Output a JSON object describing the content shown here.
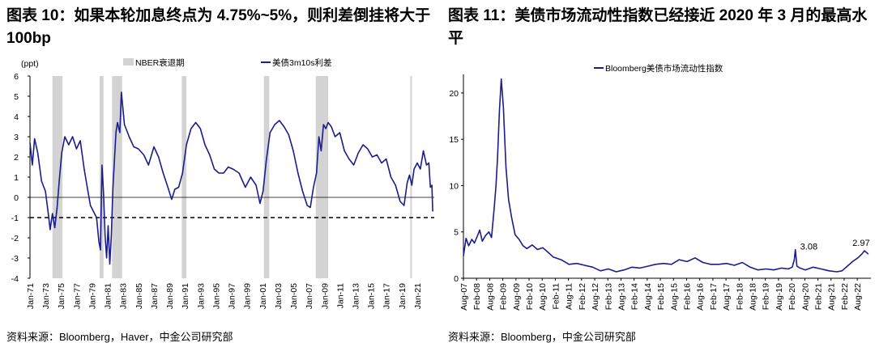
{
  "left_panel": {
    "title": "图表 10：如果本轮加息终点为 4.75%~5%，则利差倒挂将大于 100bp",
    "source": "资料来源：Bloomberg，Haver，中金公司研究部"
  },
  "right_panel": {
    "title": "图表 11：美债市场流动性指数已经接近 2020 年 3 月的最高水平",
    "source": "资料来源：Bloomberg，中金公司研究部"
  },
  "chart_data": [
    {
      "type": "line",
      "unit_label": "(ppt)",
      "ylim": [
        -4,
        6
      ],
      "y_ticks": [
        6,
        5,
        4,
        3,
        2,
        1,
        0,
        -1,
        -2,
        -3,
        -4
      ],
      "negative_tick_color": "#e00000",
      "xlim": [
        1971.0,
        2023.2
      ],
      "x_tick_labels": [
        "Jan-71",
        "Jan-73",
        "Jan-75",
        "Jan-77",
        "Jan-79",
        "Jan-81",
        "Jan-83",
        "Jan-85",
        "Jan-87",
        "Jan-89",
        "Jan-91",
        "Jan-93",
        "Jan-95",
        "Jan-97",
        "Jan-99",
        "Jan-01",
        "Jan-03",
        "Jan-05",
        "Jan-07",
        "Jan-09",
        "Jan-11",
        "Jan-13",
        "Jan-15",
        "Jan-17",
        "Jan-19",
        "Jan-21"
      ],
      "x_tick_values": [
        1971,
        1973,
        1975,
        1977,
        1979,
        1981,
        1983,
        1985,
        1987,
        1989,
        1991,
        1993,
        1995,
        1997,
        1999,
        2001,
        2003,
        2005,
        2007,
        2009,
        2011,
        2013,
        2015,
        2017,
        2019,
        2021
      ],
      "legend": [
        {
          "name": "NBER衰退期",
          "color": "#d3d3d3",
          "kind": "box"
        },
        {
          "name": "美债3m10s利差",
          "color": "#1c1c8c",
          "kind": "line"
        }
      ],
      "recessions": [
        [
          1973.9,
          1975.2
        ],
        [
          1980.0,
          1980.5
        ],
        [
          1981.6,
          1982.9
        ],
        [
          1990.6,
          1991.2
        ],
        [
          2001.2,
          2001.9
        ],
        [
          2007.9,
          2009.5
        ],
        [
          2020.1,
          2020.3
        ]
      ],
      "reference_line": {
        "y": -1,
        "style": "dashed"
      },
      "series": [
        {
          "color": "#1c1c8c",
          "x": [
            1971.0,
            1971.3,
            1971.6,
            1972.0,
            1972.5,
            1973.0,
            1973.4,
            1973.6,
            1973.9,
            1974.2,
            1974.5,
            1974.8,
            1975.1,
            1975.5,
            1976.0,
            1976.5,
            1977.0,
            1977.5,
            1978.0,
            1978.4,
            1978.8,
            1979.2,
            1979.6,
            1979.9,
            1980.1,
            1980.3,
            1980.5,
            1980.7,
            1980.9,
            1981.1,
            1981.3,
            1981.5,
            1981.7,
            1981.9,
            1982.1,
            1982.3,
            1982.6,
            1982.8,
            1983.2,
            1983.8,
            1984.4,
            1985.0,
            1985.7,
            1986.3,
            1987.0,
            1987.6,
            1988.2,
            1988.8,
            1989.3,
            1989.7,
            1990.2,
            1990.7,
            1991.2,
            1991.8,
            1992.4,
            1993.0,
            1993.6,
            1994.2,
            1994.8,
            1995.4,
            1996.0,
            1996.6,
            1997.2,
            1998.0,
            1998.8,
            1999.5,
            2000.2,
            2000.7,
            2001.1,
            2001.5,
            2002.0,
            2002.6,
            2003.2,
            2003.8,
            2004.4,
            2005.0,
            2005.6,
            2006.2,
            2006.8,
            2007.2,
            2007.6,
            2008.0,
            2008.3,
            2008.6,
            2008.9,
            2009.2,
            2009.5,
            2009.9,
            2010.4,
            2011.0,
            2011.6,
            2012.2,
            2012.8,
            2013.4,
            2014.0,
            2014.6,
            2015.2,
            2015.8,
            2016.4,
            2017.0,
            2017.6,
            2018.2,
            2018.8,
            2019.3,
            2019.7,
            2020.0,
            2020.3,
            2020.6,
            2021.0,
            2021.4,
            2021.8,
            2022.2,
            2022.5,
            2022.7,
            2022.9,
            2023.0
          ],
          "y": [
            2.7,
            1.6,
            2.9,
            2.2,
            0.8,
            0.3,
            -0.9,
            -1.6,
            -0.8,
            -1.5,
            -0.5,
            0.9,
            2.2,
            3.0,
            2.6,
            3.0,
            2.4,
            2.8,
            1.4,
            0.5,
            -0.4,
            -0.7,
            -1.0,
            -2.2,
            -2.6,
            1.6,
            0.2,
            -1.9,
            -3.0,
            -1.4,
            -3.3,
            -1.9,
            0.4,
            1.8,
            3.2,
            3.7,
            3.2,
            5.2,
            3.6,
            3.0,
            2.5,
            2.4,
            2.1,
            1.6,
            2.5,
            2.0,
            1.2,
            0.5,
            -0.1,
            0.4,
            0.5,
            1.2,
            2.6,
            3.4,
            3.7,
            3.4,
            2.6,
            2.1,
            1.4,
            1.2,
            1.2,
            1.5,
            1.4,
            1.2,
            0.5,
            1.0,
            0.6,
            -0.3,
            0.3,
            1.8,
            3.2,
            3.6,
            3.8,
            3.5,
            3.1,
            2.3,
            1.2,
            0.3,
            -0.4,
            -0.5,
            0.5,
            1.2,
            3.0,
            2.3,
            3.6,
            3.4,
            3.7,
            3.5,
            3.0,
            3.2,
            2.3,
            1.9,
            1.6,
            2.2,
            2.6,
            2.4,
            2.0,
            2.1,
            1.7,
            1.9,
            1.0,
            0.6,
            -0.2,
            -0.4,
            0.7,
            1.1,
            0.6,
            1.4,
            1.7,
            1.4,
            2.3,
            1.6,
            1.7,
            0.5,
            0.6,
            -0.7
          ]
        }
      ]
    },
    {
      "type": "line",
      "ylim": [
        0,
        22
      ],
      "y_ticks": [
        0,
        5,
        10,
        15,
        20
      ],
      "xlim": [
        2007.58,
        2023.1
      ],
      "x_tick_labels": [
        "Aug-07",
        "Feb-08",
        "Aug-08",
        "Feb-09",
        "Aug-09",
        "Feb-10",
        "Aug-10",
        "Feb-11",
        "Aug-11",
        "Feb-12",
        "Aug-12",
        "Feb-13",
        "Aug-13",
        "Feb-14",
        "Aug-14",
        "Feb-15",
        "Aug-15",
        "Feb-16",
        "Aug-16",
        "Feb-17",
        "Aug-17",
        "Feb-18",
        "Aug-18",
        "Feb-19",
        "Aug-19",
        "Feb-20",
        "Aug-20",
        "Feb-21",
        "Aug-21",
        "Feb-22",
        "Aug-22"
      ],
      "x_tick_values": [
        2007.58,
        2008.08,
        2008.58,
        2009.08,
        2009.58,
        2010.08,
        2010.58,
        2011.08,
        2011.58,
        2012.08,
        2012.58,
        2013.08,
        2013.58,
        2014.08,
        2014.58,
        2015.08,
        2015.58,
        2016.08,
        2016.58,
        2017.08,
        2017.58,
        2018.08,
        2018.58,
        2019.08,
        2019.58,
        2020.08,
        2020.58,
        2021.08,
        2021.58,
        2022.08,
        2022.58
      ],
      "legend": [
        {
          "name": "Bloomberg美债市场流动性指数",
          "color": "#1c1c8c",
          "kind": "line"
        }
      ],
      "annotations": [
        {
          "x": 2020.22,
          "y": 3.08,
          "text": "3.08"
        },
        {
          "x": 2022.85,
          "y": 2.97,
          "text": "2.97"
        }
      ],
      "series": [
        {
          "color": "#1c1c8c",
          "x": [
            2007.58,
            2007.68,
            2007.78,
            2007.9,
            2008.0,
            2008.1,
            2008.2,
            2008.3,
            2008.42,
            2008.55,
            2008.65,
            2008.75,
            2008.82,
            2008.88,
            2008.95,
            2009.02,
            2009.1,
            2009.2,
            2009.3,
            2009.42,
            2009.55,
            2009.7,
            2009.85,
            2010.0,
            2010.2,
            2010.4,
            2010.6,
            2010.8,
            2011.0,
            2011.3,
            2011.6,
            2011.9,
            2012.2,
            2012.5,
            2012.8,
            2013.1,
            2013.4,
            2013.7,
            2014.0,
            2014.3,
            2014.6,
            2014.9,
            2015.2,
            2015.5,
            2015.8,
            2016.1,
            2016.4,
            2016.7,
            2017.0,
            2017.3,
            2017.6,
            2017.9,
            2018.2,
            2018.5,
            2018.8,
            2019.1,
            2019.4,
            2019.7,
            2019.95,
            2020.1,
            2020.18,
            2020.22,
            2020.28,
            2020.4,
            2020.6,
            2020.9,
            2021.2,
            2021.5,
            2021.8,
            2022.0,
            2022.2,
            2022.4,
            2022.6,
            2022.75,
            2022.85,
            2023.0
          ],
          "y": [
            2.4,
            4.3,
            3.5,
            4.2,
            3.8,
            4.5,
            5.2,
            4.0,
            4.6,
            5.0,
            4.4,
            7.5,
            10.0,
            13.0,
            18.0,
            21.5,
            18.5,
            12.0,
            8.5,
            6.5,
            4.7,
            4.2,
            3.5,
            3.2,
            3.6,
            3.1,
            3.3,
            2.8,
            2.3,
            2.0,
            1.5,
            1.6,
            1.4,
            1.2,
            0.8,
            1.0,
            0.7,
            0.9,
            1.2,
            1.1,
            1.3,
            1.5,
            1.6,
            1.5,
            2.0,
            1.8,
            2.2,
            1.7,
            1.5,
            1.5,
            1.6,
            1.4,
            1.7,
            1.2,
            0.9,
            1.0,
            0.9,
            1.1,
            1.0,
            1.2,
            2.0,
            3.08,
            1.3,
            1.1,
            0.9,
            1.2,
            1.0,
            0.8,
            0.7,
            0.8,
            1.3,
            1.8,
            2.2,
            2.6,
            2.97,
            2.6
          ]
        }
      ]
    }
  ]
}
